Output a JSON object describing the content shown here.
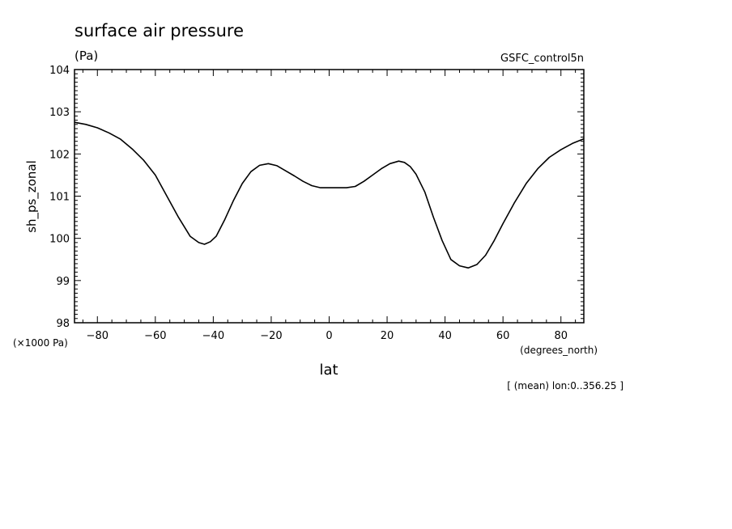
{
  "chart_data": {
    "type": "line",
    "title": "surface air pressure",
    "units": "(Pa)",
    "dataset": "GSFC_control5n",
    "xlabel": "lat",
    "x_units": "(degrees_north)",
    "ylabel": "sh_ps_zonal",
    "y_scale_note": "(×1000 Pa)",
    "footnote": "[ (mean) lon:0..356.25 ]",
    "xlim": [
      -87.9,
      87.9
    ],
    "ylim": [
      98,
      104
    ],
    "x_ticks": [
      -80,
      -60,
      -40,
      -20,
      0,
      20,
      40,
      60,
      80
    ],
    "y_ticks": [
      98,
      99,
      100,
      101,
      102,
      103,
      104
    ],
    "grid": false,
    "series": [
      {
        "color": "#000000",
        "x": [
          -87.9,
          -84,
          -80,
          -76,
          -72,
          -68,
          -64,
          -60,
          -56,
          -52,
          -48,
          -45,
          -43,
          -41,
          -39,
          -36,
          -33,
          -30,
          -27,
          -24,
          -21,
          -18,
          -15,
          -12,
          -9,
          -6,
          -3,
          0,
          3,
          6,
          9,
          12,
          15,
          18,
          21,
          24,
          26,
          28,
          30,
          33,
          36,
          39,
          42,
          45,
          48,
          51,
          54,
          57,
          60,
          64,
          68,
          72,
          76,
          80,
          84,
          87.9
        ],
        "y": [
          102.75,
          102.7,
          102.62,
          102.5,
          102.35,
          102.12,
          101.85,
          101.5,
          101.0,
          100.5,
          100.05,
          99.9,
          99.86,
          99.92,
          100.05,
          100.45,
          100.9,
          101.3,
          101.58,
          101.73,
          101.77,
          101.72,
          101.6,
          101.48,
          101.35,
          101.25,
          101.2,
          101.2,
          101.2,
          101.2,
          101.23,
          101.35,
          101.5,
          101.65,
          101.77,
          101.83,
          101.8,
          101.7,
          101.52,
          101.1,
          100.5,
          99.95,
          99.5,
          99.35,
          99.3,
          99.38,
          99.6,
          99.95,
          100.35,
          100.85,
          101.3,
          101.65,
          101.92,
          102.1,
          102.25,
          102.36
        ]
      }
    ]
  }
}
